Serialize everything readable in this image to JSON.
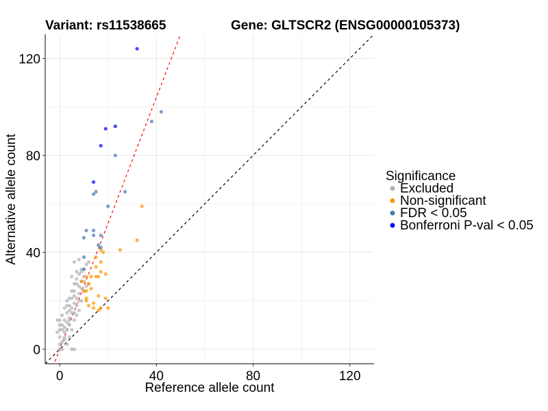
{
  "chart_data": {
    "type": "scatter",
    "title_left": "Variant: rs11538665",
    "title_right": "Gene: GLTSCR2 (ENSG00000105373)",
    "xlabel": "Reference allele count",
    "ylabel": "Alternative allele count",
    "xlim": [
      -6,
      130
    ],
    "ylim": [
      -6,
      130
    ],
    "xticks": [
      0,
      40,
      80,
      120
    ],
    "yticks": [
      0,
      40,
      80,
      120
    ],
    "xtick_labels": [
      "0",
      "40",
      "80",
      "120"
    ],
    "ytick_labels": [
      "0",
      "40",
      "80",
      "120"
    ],
    "minor_grid": [
      20,
      60,
      100
    ],
    "grid": true,
    "reference_lines": [
      {
        "name": "identity",
        "slope": 1,
        "intercept": 0,
        "color": "#000000",
        "style": "dashed"
      },
      {
        "name": "fit",
        "slope": 2.6,
        "intercept": 0,
        "color": "#ff0000",
        "style": "dashed"
      }
    ],
    "legend": {
      "title": "Significance",
      "position": "right",
      "entries": [
        {
          "label": "Excluded",
          "color": "#b3b3b3"
        },
        {
          "label": "Non-significant",
          "color": "#ff9900"
        },
        {
          "label": "FDR < 0.05",
          "color": "#4a7ab5"
        },
        {
          "label": "Bonferroni P-val < 0.05",
          "color": "#0000ff"
        }
      ]
    },
    "series": [
      {
        "name": "Excluded",
        "color": "#b3b3b3",
        "points": [
          [
            0,
            0
          ],
          [
            1,
            0
          ],
          [
            5,
            0
          ],
          [
            6,
            0
          ],
          [
            0,
            2
          ],
          [
            1,
            3
          ],
          [
            2,
            4
          ],
          [
            3,
            2
          ],
          [
            4,
            5
          ],
          [
            -1,
            7
          ],
          [
            0,
            8
          ],
          [
            1,
            8
          ],
          [
            2,
            7
          ],
          [
            3,
            8
          ],
          [
            0,
            10
          ],
          [
            1,
            10
          ],
          [
            2,
            9
          ],
          [
            3,
            11
          ],
          [
            4,
            10
          ],
          [
            5,
            8
          ],
          [
            -1,
            12
          ],
          [
            0,
            12
          ],
          [
            2,
            12
          ],
          [
            4,
            13
          ],
          [
            6,
            12
          ],
          [
            1,
            14
          ],
          [
            3,
            15
          ],
          [
            4,
            16
          ],
          [
            5,
            15
          ],
          [
            6,
            15
          ],
          [
            7,
            14
          ],
          [
            2,
            17
          ],
          [
            3,
            18
          ],
          [
            4,
            18
          ],
          [
            5,
            17
          ],
          [
            6,
            19
          ],
          [
            7,
            18
          ],
          [
            8,
            16
          ],
          [
            3,
            20
          ],
          [
            4,
            21
          ],
          [
            5,
            21
          ],
          [
            6,
            22
          ],
          [
            7,
            21
          ],
          [
            8,
            20
          ],
          [
            9,
            20
          ],
          [
            5,
            24
          ],
          [
            6,
            24
          ],
          [
            8,
            23
          ],
          [
            9,
            25
          ],
          [
            10,
            24
          ],
          [
            6,
            27
          ],
          [
            7,
            27
          ],
          [
            8,
            26
          ],
          [
            9,
            28
          ],
          [
            10,
            28
          ],
          [
            7,
            29
          ],
          [
            8,
            31
          ],
          [
            9,
            32
          ],
          [
            10,
            33
          ],
          [
            6,
            36
          ],
          [
            8,
            37
          ],
          [
            9,
            33
          ],
          [
            11,
            35
          ],
          [
            12,
            36
          ],
          [
            5,
            30
          ],
          [
            7,
            32
          ],
          [
            10,
            30
          ],
          [
            11,
            26
          ],
          [
            2,
            5
          ],
          [
            4,
            12
          ],
          [
            0,
            5
          ]
        ]
      },
      {
        "name": "Non-significant",
        "color": "#ff9900",
        "points": [
          [
            34,
            59
          ],
          [
            32,
            45
          ],
          [
            25,
            41
          ],
          [
            18,
            40
          ],
          [
            17,
            41
          ],
          [
            19,
            31
          ],
          [
            15,
            38
          ],
          [
            17,
            36
          ],
          [
            15,
            34
          ],
          [
            11,
            30
          ],
          [
            13,
            30
          ],
          [
            15,
            30
          ],
          [
            16,
            30
          ],
          [
            17,
            32
          ],
          [
            12,
            27
          ],
          [
            12,
            27
          ],
          [
            10,
            24
          ],
          [
            11,
            24
          ],
          [
            13,
            25
          ],
          [
            16,
            22
          ],
          [
            11,
            21
          ],
          [
            11,
            20
          ],
          [
            14,
            19
          ],
          [
            19,
            21
          ],
          [
            12,
            18
          ],
          [
            14,
            17
          ],
          [
            17,
            17
          ],
          [
            20,
            17
          ],
          [
            16,
            16
          ],
          [
            9,
            28
          ]
        ]
      },
      {
        "name": "FDR < 0.05",
        "color": "#4a7ab5",
        "points": [
          [
            42,
            98
          ],
          [
            38,
            94
          ],
          [
            23,
            80
          ],
          [
            27,
            65
          ],
          [
            15,
            65
          ],
          [
            14,
            64
          ],
          [
            20,
            59
          ],
          [
            11,
            49
          ],
          [
            14,
            49
          ],
          [
            14,
            47
          ],
          [
            17,
            47
          ],
          [
            10,
            46
          ],
          [
            17,
            42
          ],
          [
            10,
            38
          ],
          [
            10,
            33
          ],
          [
            16,
            43
          ]
        ]
      },
      {
        "name": "Bonferroni P-val < 0.05",
        "color": "#0000ff",
        "points": [
          [
            32,
            124
          ],
          [
            19,
            91
          ],
          [
            23,
            92
          ],
          [
            17,
            84
          ],
          [
            14,
            69
          ]
        ]
      }
    ]
  }
}
